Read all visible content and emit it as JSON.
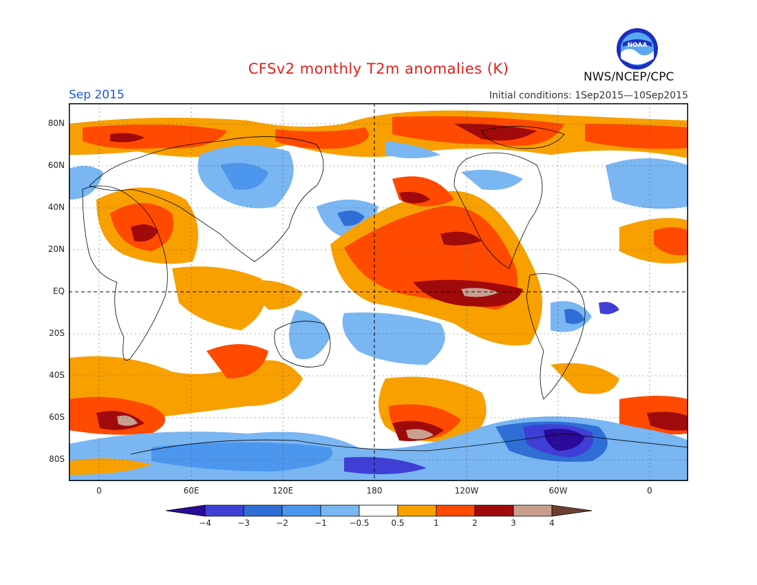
{
  "header": {
    "title": "CFSv2 monthly T2m anomalies (K)",
    "month": "Sep 2015",
    "initial_conditions": "Initial conditions: 1Sep2015—10Sep2015",
    "agency": "NWS/NCEP/CPC",
    "logo_text": "NOAA"
  },
  "map": {
    "lat_labels": [
      "80N",
      "60N",
      "40N",
      "20N",
      "EQ",
      "20S",
      "40S",
      "60S",
      "80S"
    ],
    "lon_labels": [
      "0",
      "60E",
      "120E",
      "180",
      "120W",
      "60W",
      "0"
    ],
    "colors": {
      "ocean_land_neutral": "#ffffff",
      "warm_0_5": "#f7a000",
      "warm_1": "#f55a0f",
      "warm_2": "#ff3300",
      "warm_3": "#a00a0a",
      "warm_4": "#c8a090",
      "cool_0_5": "#79b6f2",
      "cool_1": "#4c96ee",
      "cool_2": "#2f6fd5",
      "cool_3": "#3a3ac9",
      "cool_4": "#2a0a9a"
    }
  },
  "colorbar": {
    "labels": [
      "−4",
      "−3",
      "−2",
      "−1",
      "−0.5",
      "0.5",
      "1",
      "2",
      "3",
      "4"
    ],
    "colors": [
      "#2a0a9a",
      "#3f3fd6",
      "#2f6fd5",
      "#4c96ee",
      "#79b6f2",
      "#ffffff",
      "#f7a000",
      "#ff4a00",
      "#a00a0a",
      "#c8a090",
      "#6a4030"
    ]
  }
}
